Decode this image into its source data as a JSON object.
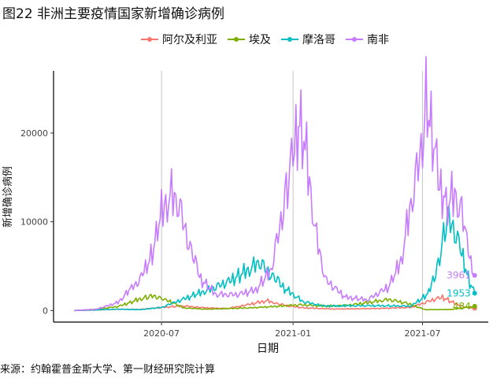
{
  "title": "图22 非洲主要疫情国家新增确诊病例",
  "source": "来源：约翰霍普金斯大学、第一财经研究院计算",
  "chart_data": {
    "type": "line",
    "xlabel": "日期",
    "ylabel": "新增确诊病例",
    "x_ticks": [
      "2020-07",
      "2021-01",
      "2021-07"
    ],
    "y_ticks": [
      0,
      10000,
      20000
    ],
    "ylim": [
      -1300,
      27000
    ],
    "xlim": [
      "2020-02-01",
      "2021-10-01"
    ],
    "grid": "vertical-major",
    "legend": "top",
    "series": [
      {
        "name": "阿尔及利亚",
        "color": "#F8766D",
        "end_label": "",
        "points": [
          [
            "2020-03-01",
            0
          ],
          [
            "2020-04-01",
            60
          ],
          [
            "2020-05-01",
            150
          ],
          [
            "2020-06-01",
            130
          ],
          [
            "2020-07-01",
            350
          ],
          [
            "2020-08-01",
            520
          ],
          [
            "2020-09-01",
            300
          ],
          [
            "2020-10-01",
            220
          ],
          [
            "2020-11-01",
            700
          ],
          [
            "2020-11-25",
            1100
          ],
          [
            "2020-12-20",
            600
          ],
          [
            "2021-01-15",
            300
          ],
          [
            "2021-03-01",
            170
          ],
          [
            "2021-05-01",
            230
          ],
          [
            "2021-06-15",
            350
          ],
          [
            "2021-07-15",
            1200
          ],
          [
            "2021-07-29",
            1500
          ],
          [
            "2021-08-15",
            800
          ],
          [
            "2021-09-01",
            350
          ],
          [
            "2021-09-12",
            260
          ]
        ]
      },
      {
        "name": "埃及",
        "color": "#7CAE00",
        "end_label": "484",
        "points": [
          [
            "2020-03-01",
            0
          ],
          [
            "2020-04-01",
            150
          ],
          [
            "2020-05-01",
            450
          ],
          [
            "2020-06-01",
            1300
          ],
          [
            "2020-06-20",
            1650
          ],
          [
            "2020-07-15",
            950
          ],
          [
            "2020-08-01",
            300
          ],
          [
            "2020-09-01",
            150
          ],
          [
            "2020-11-01",
            300
          ],
          [
            "2020-12-15",
            500
          ],
          [
            "2021-01-10",
            650
          ],
          [
            "2021-02-15",
            500
          ],
          [
            "2021-03-20",
            600
          ],
          [
            "2021-04-25",
            1000
          ],
          [
            "2021-05-15",
            1250
          ],
          [
            "2021-06-10",
            800
          ],
          [
            "2021-07-05",
            100
          ],
          [
            "2021-08-10",
            120
          ],
          [
            "2021-09-12",
            484
          ]
        ]
      },
      {
        "name": "摩洛哥",
        "color": "#00BFC4",
        "end_label": "1953",
        "points": [
          [
            "2020-03-01",
            0
          ],
          [
            "2020-05-01",
            150
          ],
          [
            "2020-06-01",
            100
          ],
          [
            "2020-07-01",
            350
          ],
          [
            "2020-08-01",
            1300
          ],
          [
            "2020-09-01",
            2200
          ],
          [
            "2020-10-01",
            3200
          ],
          [
            "2020-11-01",
            4600
          ],
          [
            "2020-11-15",
            5500
          ],
          [
            "2020-12-01",
            4000
          ],
          [
            "2020-12-20",
            2500
          ],
          [
            "2021-01-15",
            1000
          ],
          [
            "2021-02-15",
            500
          ],
          [
            "2021-04-15",
            550
          ],
          [
            "2021-06-15",
            500
          ],
          [
            "2021-07-10",
            2000
          ],
          [
            "2021-07-25",
            6000
          ],
          [
            "2021-08-05",
            10500
          ],
          [
            "2021-08-15",
            9000
          ],
          [
            "2021-08-25",
            6500
          ],
          [
            "2021-09-05",
            3200
          ],
          [
            "2021-09-12",
            1953
          ]
        ]
      },
      {
        "name": "南非",
        "color": "#C77CFF",
        "end_label": "3961",
        "points": [
          [
            "2020-03-01",
            0
          ],
          [
            "2020-04-01",
            150
          ],
          [
            "2020-05-01",
            900
          ],
          [
            "2020-06-01",
            3500
          ],
          [
            "2020-06-20",
            7000
          ],
          [
            "2020-07-01",
            11000
          ],
          [
            "2020-07-15",
            13000
          ],
          [
            "2020-07-25",
            12000
          ],
          [
            "2020-08-10",
            7000
          ],
          [
            "2020-08-25",
            3500
          ],
          [
            "2020-09-15",
            1800
          ],
          [
            "2020-10-15",
            1800
          ],
          [
            "2020-11-10",
            2300
          ],
          [
            "2020-12-01",
            4500
          ],
          [
            "2020-12-15",
            10000
          ],
          [
            "2020-12-28",
            16000
          ],
          [
            "2021-01-07",
            20500
          ],
          [
            "2021-01-12",
            21500
          ],
          [
            "2021-01-20",
            17000
          ],
          [
            "2021-02-01",
            9000
          ],
          [
            "2021-02-15",
            3500
          ],
          [
            "2021-03-15",
            1500
          ],
          [
            "2021-04-15",
            1200
          ],
          [
            "2021-05-15",
            2700
          ],
          [
            "2021-06-01",
            5500
          ],
          [
            "2021-06-15",
            12000
          ],
          [
            "2021-07-01",
            19000
          ],
          [
            "2021-07-06",
            25000
          ],
          [
            "2021-07-15",
            20000
          ],
          [
            "2021-07-25",
            14000
          ],
          [
            "2021-08-05",
            12000
          ],
          [
            "2021-08-15",
            13000
          ],
          [
            "2021-08-25",
            11000
          ],
          [
            "2021-09-05",
            6000
          ],
          [
            "2021-09-12",
            3961
          ]
        ]
      }
    ]
  }
}
